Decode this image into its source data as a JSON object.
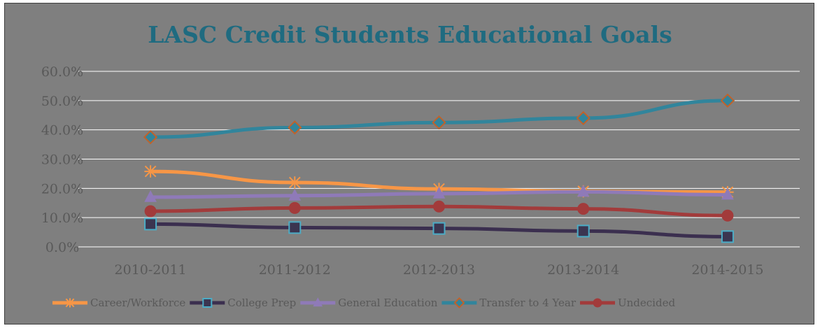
{
  "chart_data": {
    "type": "line",
    "title": "LASC Credit Students Educational Goals",
    "xlabel": "",
    "ylabel": "",
    "categories": [
      "2010-2011",
      "2011-2012",
      "2012-2013",
      "2013-2014",
      "2014-2015"
    ],
    "ylim": [
      0,
      60
    ],
    "yticks": [
      "0.0%",
      "10.0%",
      "20.0%",
      "30.0%",
      "40.0%",
      "50.0%",
      "60.0%"
    ],
    "grid": true,
    "legend_position": "bottom",
    "series": [
      {
        "name": "Career/Workforce",
        "marker": "asterisk",
        "color": "#f79646",
        "values": [
          25.8,
          22.0,
          19.8,
          19.0,
          18.7
        ]
      },
      {
        "name": "College Prep",
        "marker": "square",
        "color": "#3b2f4f",
        "marker_fill": "#3b3550",
        "marker_edge": "#4bacc6",
        "values": [
          7.8,
          6.6,
          6.3,
          5.4,
          3.5
        ]
      },
      {
        "name": "General Education",
        "marker": "triangle",
        "color": "#8f7ab8",
        "values": [
          17.0,
          17.5,
          18.2,
          18.8,
          17.8
        ]
      },
      {
        "name": "Transfer to 4 Year",
        "marker": "diamond",
        "color": "#31859c",
        "marker_fill": "#31859c",
        "marker_edge": "#c0622b",
        "values": [
          37.5,
          40.8,
          42.5,
          44.0,
          50.0
        ]
      },
      {
        "name": "Undecided",
        "marker": "circle",
        "color": "#a23b3b",
        "values": [
          12.2,
          13.3,
          13.8,
          13.0,
          10.7
        ]
      }
    ],
    "colors": {
      "title": "#1f6b80",
      "axis_text": "#595959",
      "grid": "#ffffff",
      "plot_bg": "#7f7f7f"
    }
  }
}
